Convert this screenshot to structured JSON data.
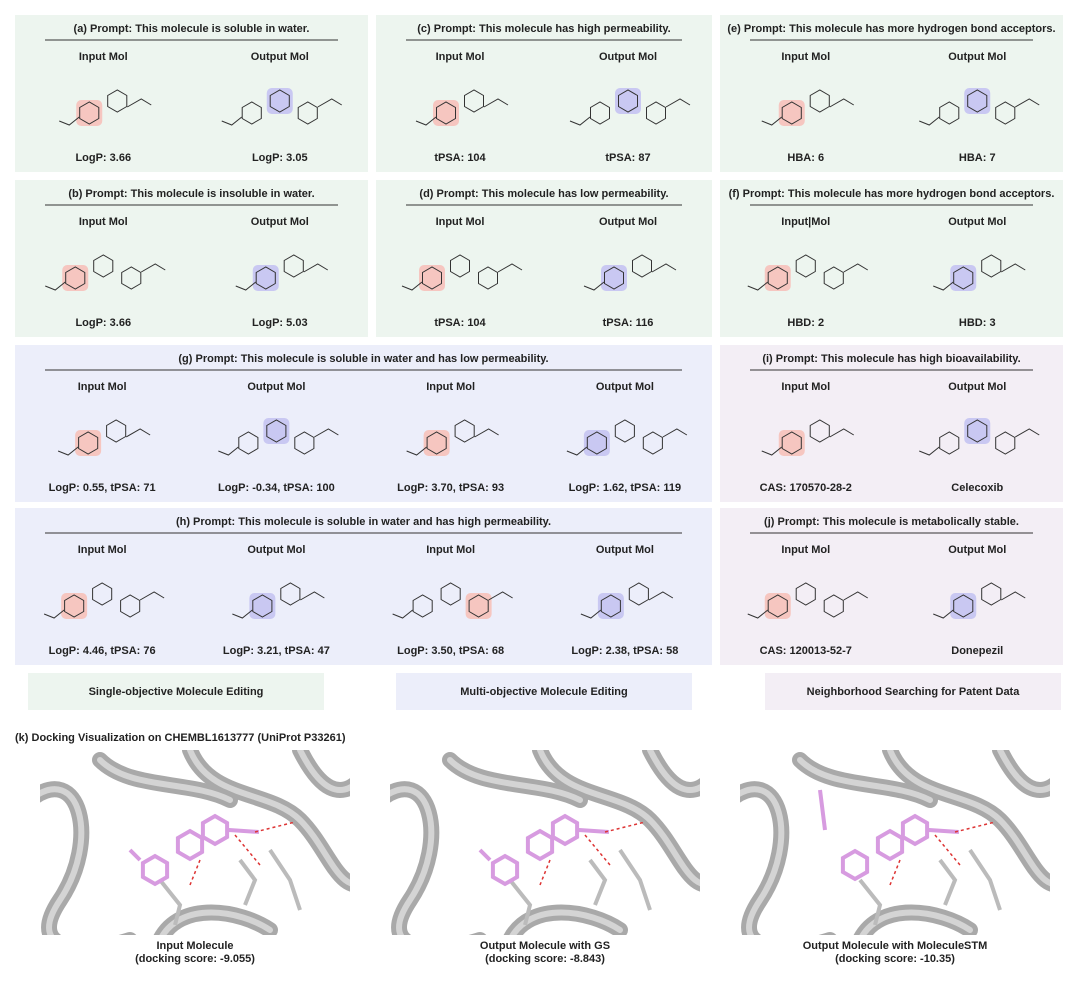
{
  "panels": [
    {
      "title": "(a) Prompt: This molecule is soluble in water.",
      "molecules": [
        {
          "label": "Input Mol",
          "property": "LogP: 3.66"
        },
        {
          "label": "Output Mol",
          "property": "LogP: 3.05"
        }
      ]
    },
    {
      "title": "(b) Prompt: This molecule is insoluble in water.",
      "molecules": [
        {
          "label": "Input Mol",
          "property": "LogP: 3.66"
        },
        {
          "label": "Output Mol",
          "property": "LogP: 5.03"
        }
      ]
    },
    {
      "title": "(c) Prompt: This molecule has high permeability.",
      "molecules": [
        {
          "label": "Input Mol",
          "property": "tPSA: 104"
        },
        {
          "label": "Output Mol",
          "property": "tPSA: 87"
        }
      ]
    },
    {
      "title": "(d) Prompt: This molecule has low permeability.",
      "molecules": [
        {
          "label": "Input Mol",
          "property": "tPSA: 104"
        },
        {
          "label": "Output Mol",
          "property": "tPSA: 116"
        }
      ]
    },
    {
      "title": "(e) Prompt: This molecule has more hydrogen bond acceptors.",
      "molecules": [
        {
          "label": "Input Mol",
          "property": "HBA: 6"
        },
        {
          "label": "Output Mol",
          "property": "HBA: 7"
        }
      ]
    },
    {
      "title": "(f) Prompt: This molecule has more hydrogen bond acceptors.",
      "molecules": [
        {
          "label": "Input|Mol",
          "property": "HBD: 2"
        },
        {
          "label": "Output Mol",
          "property": "HBD: 3"
        }
      ]
    },
    {
      "title": "(g) Prompt: This molecule is soluble in water and has low permeability.",
      "molecules": [
        {
          "label": "Input Mol",
          "property": "LogP: 0.55, tPSA: 71"
        },
        {
          "label": "Output Mol",
          "property": "LogP: -0.34, tPSA: 100"
        },
        {
          "label": "Input Mol",
          "property": "LogP: 3.70, tPSA: 93"
        },
        {
          "label": "Output Mol",
          "property": "LogP: 1.62, tPSA: 119"
        }
      ]
    },
    {
      "title": "(h) Prompt: This molecule is soluble in water and has high permeability.",
      "molecules": [
        {
          "label": "Input Mol",
          "property": "LogP: 4.46, tPSA: 76"
        },
        {
          "label": "Output Mol",
          "property": "LogP: 3.21, tPSA: 47"
        },
        {
          "label": "Input Mol",
          "property": "LogP: 3.50, tPSA: 68"
        },
        {
          "label": "Output Mol",
          "property": "LogP: 2.38, tPSA: 58"
        }
      ]
    },
    {
      "title": "(i) Prompt: This molecule has high bioavailability.",
      "molecules": [
        {
          "label": "Input Mol",
          "property": "CAS: 170570-28-2"
        },
        {
          "label": "Output Mol",
          "property": "Celecoxib"
        }
      ]
    },
    {
      "title": "(j) Prompt: This molecule is metabolically stable.",
      "molecules": [
        {
          "label": "Input Mol",
          "property": "CAS: 120013-52-7"
        },
        {
          "label": "Output Mol",
          "property": "Donepezil"
        }
      ]
    }
  ],
  "legend": [
    "Single-objective Molecule Editing",
    "Multi-objective Molecule Editing",
    "Neighborhood Searching for Patent Data"
  ],
  "docking": {
    "title": "(k) Docking Visualization on CHEMBL1613777 (UniProt P33261)",
    "images": [
      {
        "caption": "Input Molecule",
        "score": "(docking score: -9.055)"
      },
      {
        "caption": "Output Molecule with GS",
        "score": "(docking score: -8.843)"
      },
      {
        "caption": "Output Molecule with MoleculeSTM",
        "score": "(docking score: -10.35)"
      }
    ]
  }
}
